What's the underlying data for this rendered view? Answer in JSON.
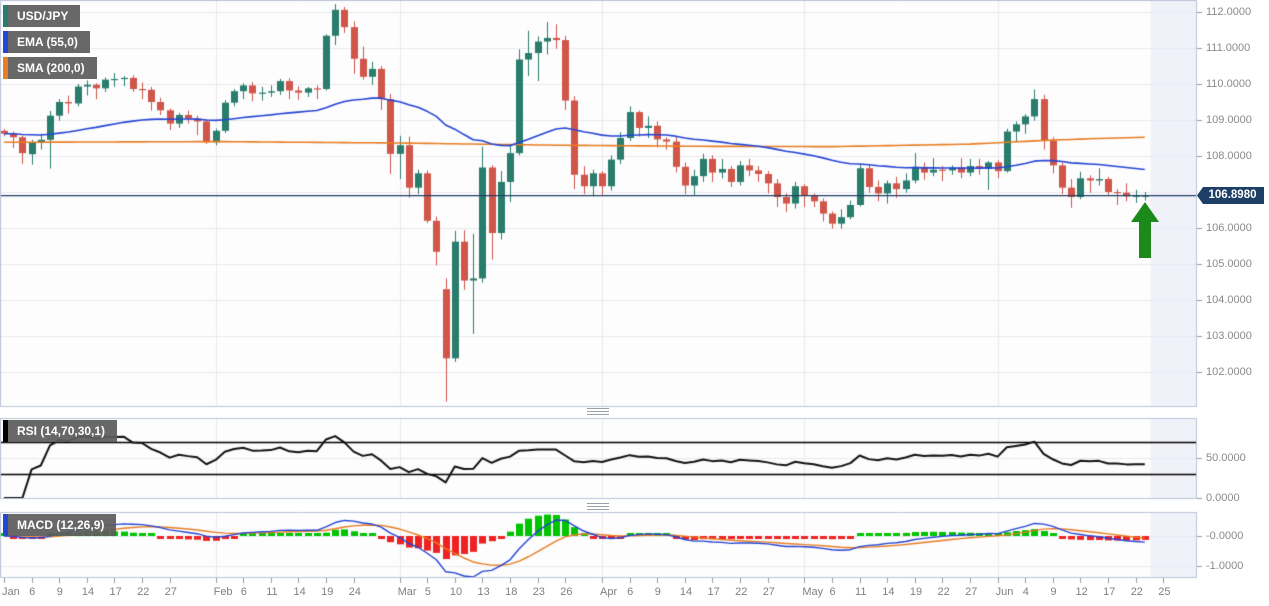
{
  "legends": {
    "symbol": "USD/JPY",
    "ema": "EMA (55,0)",
    "sma": "SMA (200,0)",
    "rsi": "RSI (14,70,30,1)",
    "macd": "MACD (12,26,9)"
  },
  "price_label": "106.8980",
  "colors": {
    "bullish": "#2a7d6c",
    "bearish": "#d0564a",
    "ema_line": "#2545d4",
    "sma_line": "#e87d22",
    "price_line": "#1d3f66",
    "price_label_bg": "#1d3f66",
    "rsi_line": "#111111",
    "rsi_level": "#000000",
    "macd_line": "#2545d4",
    "macd_signal": "#e87d22",
    "macd_hist_up": "#00c400",
    "macd_hist_down": "#ee2222",
    "arrow": "#1b8a1b",
    "legend_bg": "#5c5c5c",
    "grid": "#e9e9f0",
    "border": "#b9c3d8",
    "axis_text": "#8a8a8a",
    "shade_right": "rgba(234,234,246,0.6)"
  },
  "y_axis_main": {
    "ticks": [
      {
        "label": "112.0000",
        "value": 112
      },
      {
        "label": "111.0000",
        "value": 111
      },
      {
        "label": "110.0000",
        "value": 110
      },
      {
        "label": "109.0000",
        "value": 109
      },
      {
        "label": "108.0000",
        "value": 108
      },
      {
        "label": "106.0000",
        "value": 106
      },
      {
        "label": "105.0000",
        "value": 105
      },
      {
        "label": "104.0000",
        "value": 104
      },
      {
        "label": "103.0000",
        "value": 103
      },
      {
        "label": "102.0000",
        "value": 102
      }
    ],
    "gridline_values": [
      112,
      111,
      110,
      109,
      108,
      107,
      106,
      105,
      104,
      103,
      102
    ]
  },
  "rsi_axis": {
    "ticks": [
      {
        "label": "50.0000",
        "value": 50
      },
      {
        "label": "0.0000",
        "value": 0
      }
    ],
    "levels": [
      70,
      30
    ],
    "grid_value": 50
  },
  "macd_axis": {
    "ticks": [
      {
        "label": "-0.0000",
        "value": 0
      },
      {
        "label": "-1.0000",
        "value": -1
      }
    ]
  },
  "x_axis": {
    "ticks": [
      {
        "label": "Jan",
        "i": 0
      },
      {
        "label": "6",
        "i": 3
      },
      {
        "label": "9",
        "i": 6
      },
      {
        "label": "14",
        "i": 9
      },
      {
        "label": "17",
        "i": 12
      },
      {
        "label": "22",
        "i": 15
      },
      {
        "label": "27",
        "i": 18
      },
      {
        "label": "Feb",
        "i": 23
      },
      {
        "label": "6",
        "i": 26
      },
      {
        "label": "11",
        "i": 29
      },
      {
        "label": "14",
        "i": 32
      },
      {
        "label": "19",
        "i": 35
      },
      {
        "label": "24",
        "i": 38
      },
      {
        "label": "Mar",
        "i": 43
      },
      {
        "label": "5",
        "i": 46
      },
      {
        "label": "10",
        "i": 49
      },
      {
        "label": "13",
        "i": 52
      },
      {
        "label": "18",
        "i": 55
      },
      {
        "label": "23",
        "i": 58
      },
      {
        "label": "26",
        "i": 61
      },
      {
        "label": "Apr",
        "i": 65
      },
      {
        "label": "6",
        "i": 68
      },
      {
        "label": "9",
        "i": 71
      },
      {
        "label": "14",
        "i": 74
      },
      {
        "label": "17",
        "i": 77
      },
      {
        "label": "22",
        "i": 80
      },
      {
        "label": "27",
        "i": 83
      },
      {
        "label": "May",
        "i": 87
      },
      {
        "label": "6",
        "i": 90
      },
      {
        "label": "11",
        "i": 93
      },
      {
        "label": "14",
        "i": 96
      },
      {
        "label": "19",
        "i": 99
      },
      {
        "label": "22",
        "i": 102
      },
      {
        "label": "27",
        "i": 105
      },
      {
        "label": "Jun",
        "i": 108
      },
      {
        "label": "4",
        "i": 111
      },
      {
        "label": "9",
        "i": 114
      },
      {
        "label": "12",
        "i": 117
      },
      {
        "label": "17",
        "i": 120
      },
      {
        "label": "22",
        "i": 123
      },
      {
        "label": "25",
        "i": 126
      }
    ],
    "month_gridline_indices": [
      23,
      43,
      65,
      87,
      108
    ]
  },
  "chart_data": {
    "type": "candlestick",
    "symbol": "USD/JPY",
    "timeframe": "daily, Jan-Jun",
    "current_price": 106.898,
    "price_line": 106.898,
    "ylim": [
      101.0,
      112.6
    ],
    "candles": [
      [
        108.7,
        108.75,
        108.55,
        108.62
      ],
      [
        108.62,
        108.68,
        108.22,
        108.52
      ],
      [
        108.52,
        108.56,
        107.78,
        108.08
      ],
      [
        108.05,
        108.45,
        107.76,
        108.38
      ],
      [
        108.38,
        108.62,
        108.18,
        108.45
      ],
      [
        108.45,
        109.25,
        107.65,
        109.12
      ],
      [
        109.12,
        109.58,
        108.98,
        109.5
      ],
      [
        109.5,
        109.68,
        109.18,
        109.46
      ],
      [
        109.46,
        110.0,
        109.38,
        109.93
      ],
      [
        109.93,
        110.1,
        109.68,
        109.98
      ],
      [
        109.98,
        110.02,
        109.58,
        109.88
      ],
      [
        109.88,
        110.18,
        109.78,
        110.12
      ],
      [
        110.12,
        110.3,
        109.92,
        110.14
      ],
      [
        110.14,
        110.22,
        109.94,
        110.17
      ],
      [
        110.17,
        110.24,
        109.78,
        109.86
      ],
      [
        109.86,
        110.04,
        109.58,
        109.84
      ],
      [
        109.84,
        109.92,
        109.26,
        109.5
      ],
      [
        109.5,
        109.62,
        109.14,
        109.27
      ],
      [
        109.27,
        109.32,
        108.72,
        108.9
      ],
      [
        108.9,
        109.2,
        108.78,
        109.14
      ],
      [
        109.14,
        109.26,
        108.9,
        109.04
      ],
      [
        109.04,
        109.12,
        108.58,
        108.96
      ],
      [
        108.96,
        109.02,
        108.34,
        108.38
      ],
      [
        108.38,
        108.76,
        108.3,
        108.7
      ],
      [
        108.7,
        109.55,
        108.64,
        109.48
      ],
      [
        109.48,
        109.86,
        109.38,
        109.8
      ],
      [
        109.8,
        110.02,
        109.58,
        109.96
      ],
      [
        109.96,
        110.06,
        109.52,
        109.74
      ],
      [
        109.74,
        109.92,
        109.54,
        109.76
      ],
      [
        109.76,
        109.96,
        109.64,
        109.8
      ],
      [
        109.8,
        110.14,
        109.7,
        110.08
      ],
      [
        110.08,
        110.16,
        109.58,
        109.82
      ],
      [
        109.82,
        109.94,
        109.56,
        109.76
      ],
      [
        109.76,
        109.92,
        109.64,
        109.88
      ],
      [
        109.88,
        109.96,
        109.58,
        109.86
      ],
      [
        109.86,
        111.38,
        109.82,
        111.34
      ],
      [
        111.34,
        112.22,
        111.08,
        112.06
      ],
      [
        112.06,
        112.14,
        111.42,
        111.58
      ],
      [
        111.58,
        111.74,
        110.28,
        110.7
      ],
      [
        110.7,
        111.04,
        110.12,
        110.2
      ],
      [
        110.2,
        110.62,
        109.98,
        110.42
      ],
      [
        110.42,
        110.5,
        109.28,
        109.58
      ],
      [
        109.58,
        109.72,
        107.5,
        108.06
      ],
      [
        108.06,
        108.56,
        107.36,
        108.3
      ],
      [
        108.3,
        108.54,
        106.84,
        107.12
      ],
      [
        107.12,
        107.62,
        106.94,
        107.52
      ],
      [
        107.52,
        107.6,
        106.14,
        106.2
      ],
      [
        106.2,
        106.32,
        104.96,
        105.34
      ],
      [
        104.3,
        104.6,
        101.18,
        102.38
      ],
      [
        102.38,
        105.92,
        102.28,
        105.62
      ],
      [
        105.62,
        105.94,
        104.28,
        104.54
      ],
      [
        104.54,
        105.84,
        103.06,
        104.6
      ],
      [
        104.6,
        108.26,
        104.48,
        107.68
      ],
      [
        107.68,
        107.74,
        105.12,
        105.86
      ],
      [
        105.86,
        107.58,
        105.68,
        107.28
      ],
      [
        107.28,
        108.3,
        106.72,
        108.08
      ],
      [
        108.08,
        110.96,
        108.02,
        110.68
      ],
      [
        110.68,
        111.48,
        110.22,
        110.86
      ],
      [
        110.86,
        111.32,
        110.08,
        111.18
      ],
      [
        111.18,
        111.72,
        110.82,
        111.28
      ],
      [
        111.28,
        111.66,
        110.98,
        111.22
      ],
      [
        111.22,
        111.34,
        109.28,
        109.54
      ],
      [
        109.54,
        109.66,
        107.08,
        107.48
      ],
      [
        107.48,
        107.72,
        106.94,
        107.16
      ],
      [
        107.16,
        107.62,
        106.88,
        107.52
      ],
      [
        107.52,
        107.58,
        106.92,
        107.16
      ],
      [
        107.16,
        108.02,
        107.04,
        107.9
      ],
      [
        107.9,
        108.66,
        107.78,
        108.5
      ],
      [
        108.5,
        109.38,
        108.42,
        109.22
      ],
      [
        109.22,
        109.26,
        108.54,
        108.78
      ],
      [
        108.78,
        109.1,
        108.5,
        108.84
      ],
      [
        108.84,
        108.96,
        108.24,
        108.46
      ],
      [
        108.46,
        108.52,
        108.18,
        108.4
      ],
      [
        108.4,
        108.56,
        107.54,
        107.7
      ],
      [
        107.7,
        107.82,
        106.94,
        107.18
      ],
      [
        107.18,
        107.62,
        106.92,
        107.44
      ],
      [
        107.44,
        108.06,
        107.28,
        107.92
      ],
      [
        107.92,
        108.02,
        107.28,
        107.54
      ],
      [
        107.54,
        107.92,
        107.38,
        107.64
      ],
      [
        107.64,
        107.72,
        107.14,
        107.28
      ],
      [
        107.28,
        107.86,
        107.18,
        107.74
      ],
      [
        107.74,
        107.92,
        107.44,
        107.6
      ],
      [
        107.6,
        107.72,
        107.28,
        107.5
      ],
      [
        107.5,
        107.58,
        106.96,
        107.24
      ],
      [
        107.24,
        107.36,
        106.58,
        106.86
      ],
      [
        106.86,
        106.96,
        106.44,
        106.68
      ],
      [
        106.68,
        107.28,
        106.54,
        107.16
      ],
      [
        107.16,
        107.22,
        106.58,
        106.9
      ],
      [
        106.9,
        106.96,
        106.58,
        106.74
      ],
      [
        106.74,
        106.82,
        106.18,
        106.4
      ],
      [
        106.4,
        106.46,
        105.98,
        106.12
      ],
      [
        106.12,
        106.52,
        105.98,
        106.3
      ],
      [
        106.3,
        106.76,
        106.24,
        106.64
      ],
      [
        106.64,
        107.76,
        106.6,
        107.66
      ],
      [
        107.66,
        107.76,
        106.98,
        107.14
      ],
      [
        107.14,
        107.32,
        106.74,
        106.96
      ],
      [
        106.96,
        107.32,
        106.68,
        107.24
      ],
      [
        107.24,
        107.42,
        106.84,
        107.08
      ],
      [
        107.08,
        107.52,
        106.98,
        107.32
      ],
      [
        107.32,
        108.08,
        107.24,
        107.7
      ],
      [
        107.7,
        107.82,
        107.34,
        107.54
      ],
      [
        107.54,
        107.94,
        107.44,
        107.62
      ],
      [
        107.62,
        107.72,
        107.3,
        107.6
      ],
      [
        107.6,
        107.74,
        107.48,
        107.68
      ],
      [
        107.68,
        107.94,
        107.38,
        107.54
      ],
      [
        107.54,
        107.92,
        107.44,
        107.72
      ],
      [
        107.72,
        107.92,
        107.48,
        107.64
      ],
      [
        107.64,
        107.86,
        107.06,
        107.82
      ],
      [
        107.82,
        107.88,
        107.38,
        107.58
      ],
      [
        107.58,
        108.76,
        107.54,
        108.68
      ],
      [
        108.68,
        108.96,
        108.38,
        108.88
      ],
      [
        108.88,
        109.16,
        108.62,
        109.1
      ],
      [
        109.1,
        109.85,
        108.98,
        109.58
      ],
      [
        109.58,
        109.7,
        108.18,
        108.42
      ],
      [
        108.42,
        108.52,
        107.52,
        107.74
      ],
      [
        107.74,
        107.82,
        106.94,
        107.12
      ],
      [
        107.12,
        107.36,
        106.56,
        106.86
      ],
      [
        106.86,
        107.56,
        106.8,
        107.38
      ],
      [
        107.38,
        107.46,
        106.98,
        107.32
      ],
      [
        107.32,
        107.66,
        107.18,
        107.36
      ],
      [
        107.36,
        107.42,
        106.92,
        107.0
      ],
      [
        107.0,
        107.08,
        106.64,
        106.98
      ],
      [
        106.98,
        107.24,
        106.74,
        106.88
      ],
      [
        106.88,
        107.06,
        106.7,
        106.9
      ],
      [
        106.9,
        107.0,
        106.76,
        106.9
      ]
    ],
    "indicators": {
      "ema": {
        "period": 55
      },
      "sma": {
        "period": 200,
        "points": [
          [
            0,
            108.38
          ],
          [
            23,
            108.4
          ],
          [
            43,
            108.36
          ],
          [
            60,
            108.3
          ],
          [
            75,
            108.27
          ],
          [
            90,
            108.26
          ],
          [
            105,
            108.33
          ],
          [
            112,
            108.42
          ],
          [
            118,
            108.48
          ],
          [
            124,
            108.52
          ]
        ]
      },
      "rsi": {
        "period": 14,
        "overbought": 70,
        "oversold": 30
      },
      "macd": {
        "fast": 12,
        "slow": 26,
        "signal": 9
      }
    },
    "annotations": {
      "up_arrow_at_index": 124,
      "up_arrow_meaning": "buy/up annotation at latest candle"
    }
  }
}
